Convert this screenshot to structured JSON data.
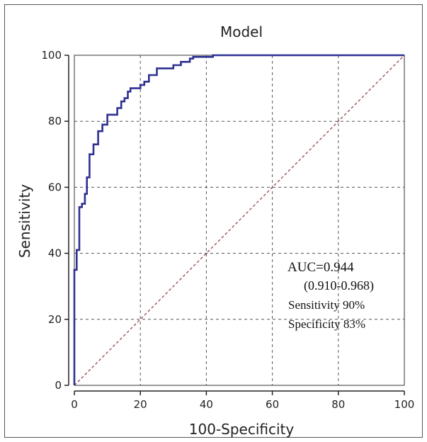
{
  "chart_data": {
    "type": "line",
    "title": "Model",
    "xlabel": "100-Specificity",
    "ylabel": "Sensitivity",
    "xlim": [
      0,
      100
    ],
    "ylim": [
      0,
      100
    ],
    "xticks": [
      0,
      20,
      40,
      60,
      80,
      100
    ],
    "yticks": [
      0,
      20,
      40,
      60,
      80,
      100
    ],
    "grid": true,
    "series": [
      {
        "role": "roc-curve",
        "color": "#2e3192",
        "x": [
          0,
          0,
          0.7,
          0.7,
          1.5,
          1.5,
          2.3,
          2.3,
          3.2,
          3.2,
          3.8,
          3.8,
          4.6,
          4.6,
          5.8,
          5.8,
          7.2,
          7.2,
          8.5,
          8.5,
          10,
          10,
          13,
          13,
          14.2,
          14.2,
          15.2,
          15.2,
          16.2,
          16.2,
          17,
          17,
          20,
          20,
          21.2,
          21.2,
          22.6,
          22.6,
          25,
          25,
          30,
          30,
          32.3,
          32.3,
          34,
          34,
          35,
          35,
          36,
          36,
          42,
          42,
          43.5,
          43.5,
          100
        ],
        "y": [
          0,
          35,
          35,
          41,
          41,
          54,
          54,
          55,
          55,
          58,
          58,
          63,
          63,
          70,
          70,
          73,
          73,
          77,
          77,
          79,
          79,
          82,
          82,
          84,
          84,
          86,
          86,
          87,
          87,
          89,
          89,
          90,
          90,
          91,
          91,
          92,
          92,
          94,
          94,
          96,
          96,
          97,
          97,
          98,
          98,
          98,
          98,
          99,
          99,
          99.5,
          99.5,
          100,
          100,
          100,
          100
        ]
      },
      {
        "role": "reference-line",
        "color": "#8b3a3a",
        "x": [
          0,
          100
        ],
        "y": [
          0,
          100
        ]
      }
    ],
    "annotations": [
      "AUC=0.944",
      "(0.910-0.968)",
      "Sensitivity 90%",
      "Specificity 83%"
    ]
  }
}
